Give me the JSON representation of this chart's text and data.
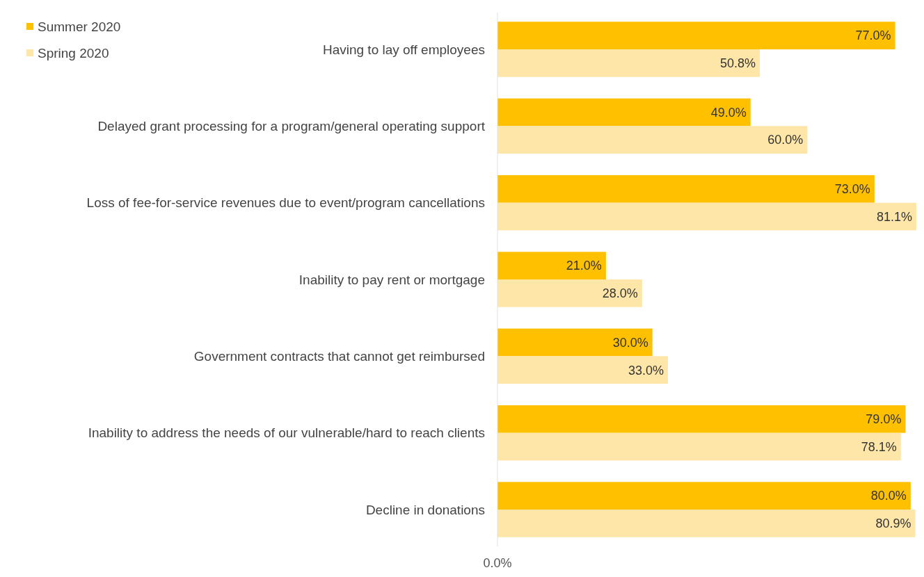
{
  "chart_data": {
    "type": "bar",
    "orientation": "horizontal",
    "categories": [
      "Having to lay off employees",
      "Delayed grant processing for a program/general operating support",
      "Loss of fee-for-service revenues due to event/program cancellations",
      "Inability to pay rent or mortgage",
      "Government contracts that cannot get reimbursed",
      "Inability to address the needs of our vulnerable/hard to reach clients",
      "Decline in donations"
    ],
    "series": [
      {
        "name": "Summer 2020",
        "color": "#ffc000",
        "values": [
          77.0,
          49.0,
          73.0,
          21.0,
          30.0,
          79.0,
          80.0
        ],
        "value_labels": [
          "77.0%",
          "49.0%",
          "73.0%",
          "21.0%",
          "30.0%",
          "79.0%",
          "80.0%"
        ]
      },
      {
        "name": "Spring 2020",
        "color": "#fde6a8",
        "values": [
          50.8,
          60.0,
          81.1,
          28.0,
          33.0,
          78.1,
          80.9
        ],
        "value_labels": [
          "50.8%",
          "60.0%",
          "81.1%",
          "28.0%",
          "33.0%",
          "78.1%",
          "80.9%"
        ]
      }
    ],
    "annotations": [
      "0.0%"
    ],
    "legend": "top left"
  }
}
